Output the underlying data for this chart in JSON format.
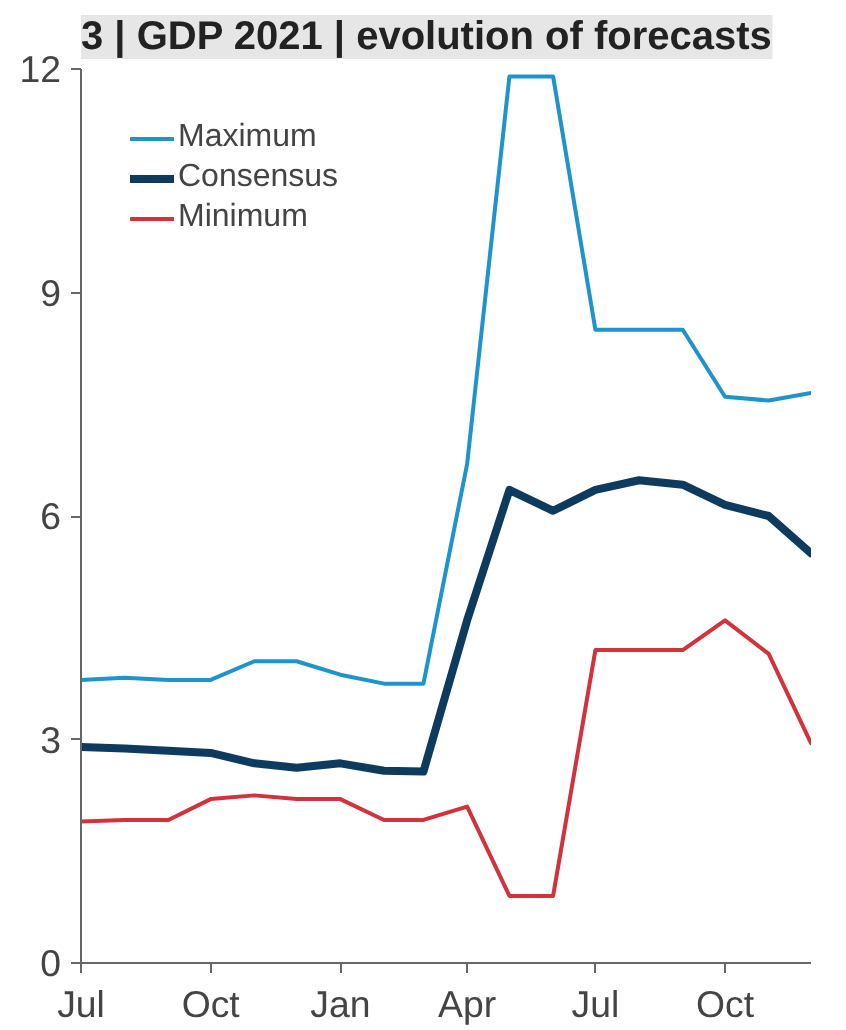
{
  "chart_data": {
    "type": "line",
    "title": "3 | GDP 2021 | evolution of forecasts",
    "x": [
      "2020-07",
      "2020-08",
      "2020-09",
      "2020-10",
      "2020-11",
      "2020-12",
      "2021-01",
      "2021-02",
      "2021-03",
      "2021-04",
      "2021-05",
      "2021-06",
      "2021-07",
      "2021-08",
      "2021-09",
      "2021-10",
      "2021-11",
      "2021-12"
    ],
    "series": [
      {
        "name": "Maximum",
        "color": "#1f93cc",
        "values": [
          3.8,
          3.83,
          3.8,
          3.8,
          4.05,
          4.05,
          3.87,
          3.75,
          3.75,
          6.7,
          11.9,
          11.9,
          8.5,
          8.5,
          8.5,
          7.6,
          7.55,
          7.65
        ]
      },
      {
        "name": "Consensus",
        "color": "#0d3b5e",
        "values": [
          2.9,
          2.88,
          2.85,
          2.82,
          2.68,
          2.62,
          2.68,
          2.58,
          2.57,
          4.6,
          6.35,
          6.07,
          6.35,
          6.48,
          6.42,
          6.15,
          6.0,
          5.5
        ]
      },
      {
        "name": "Minimum",
        "color": "#d2323c",
        "values": [
          1.9,
          1.92,
          1.92,
          2.2,
          2.25,
          2.2,
          2.2,
          1.92,
          1.92,
          2.1,
          0.9,
          0.9,
          4.2,
          4.2,
          4.2,
          4.6,
          4.15,
          2.95
        ]
      }
    ],
    "xlim": [
      "2020-07",
      "2021-12"
    ],
    "xticks": [
      {
        "value": "2020-07",
        "label": "Jul"
      },
      {
        "value": "2020-10",
        "label": "Oct"
      },
      {
        "value": "2021-01",
        "label": "Jan"
      },
      {
        "value": "2021-04",
        "label": "Apr"
      },
      {
        "value": "2021-07",
        "label": "Jul"
      },
      {
        "value": "2021-10",
        "label": "Oct"
      }
    ],
    "ylim": [
      0,
      12
    ],
    "yticks": [
      0,
      3,
      6,
      9,
      12
    ],
    "grid": false,
    "legend": "top left",
    "marker": "none",
    "line_style": "solid"
  }
}
